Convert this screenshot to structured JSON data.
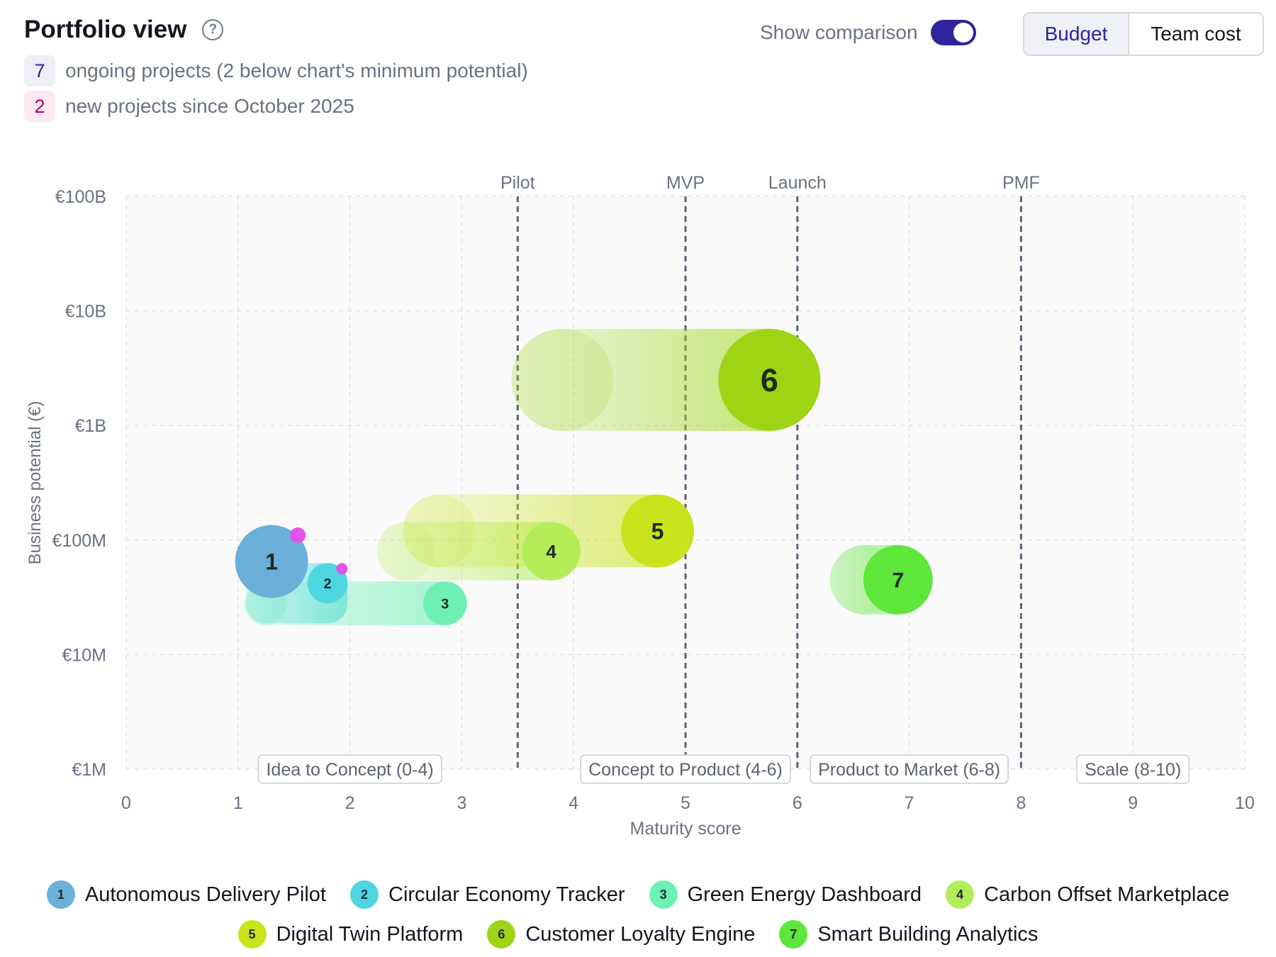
{
  "header": {
    "title": "Portfolio view",
    "help_icon": "question-circle-icon",
    "comparison_label": "Show comparison",
    "comparison_on": true,
    "toggle_color": "#2e249e",
    "segments": [
      "Budget",
      "Team cost"
    ],
    "active_segment": "Budget"
  },
  "stats": [
    {
      "count": "7",
      "text": "ongoing projects (2 below chart's minimum potential)",
      "badge_bg": "#eef0f6",
      "badge_fg": "#2e249e"
    },
    {
      "count": "2",
      "text": "new projects since October 2025",
      "badge_bg": "#fce8f3",
      "badge_fg": "#b3005c"
    }
  ],
  "chart_data": {
    "type": "scatter",
    "xlabel": "Maturity score",
    "ylabel": "Business potential (€)",
    "xlim": [
      0,
      10
    ],
    "xticks": [
      "0",
      "1",
      "2",
      "3",
      "4",
      "5",
      "6",
      "7",
      "8",
      "9",
      "10"
    ],
    "yscale": "log",
    "ylim": [
      1000000,
      100000000000
    ],
    "ytick_values": [
      1000000,
      10000000,
      100000000,
      1000000000,
      10000000000,
      100000000000
    ],
    "yticks": [
      "€1M",
      "€10M",
      "€100M",
      "€1B",
      "€10B",
      "€100B"
    ],
    "grid": true,
    "milestones": [
      {
        "label": "Pilot",
        "x": 3.5
      },
      {
        "label": "MVP",
        "x": 5
      },
      {
        "label": "Launch",
        "x": 6
      },
      {
        "label": "PMF",
        "x": 8
      }
    ],
    "phases": [
      {
        "label": "Idea to Concept (0-4)",
        "center": 2
      },
      {
        "label": "Concept to Product (4-6)",
        "center": 5
      },
      {
        "label": "Product to Market (6-8)",
        "center": 7
      },
      {
        "label": "Scale (8-10)",
        "center": 9
      }
    ],
    "series": [
      {
        "id": "1",
        "name": "Autonomous Delivery Pilot",
        "color": "#6ab0d8",
        "x": 1.3,
        "y": 65000000,
        "budget": 1.0,
        "new": true
      },
      {
        "id": "2",
        "name": "Circular Economy Tracker",
        "color": "#4dd6e0",
        "x": 1.8,
        "y": 42000000,
        "budget": 0.55,
        "new": true,
        "prev_x": 1.25,
        "prev_y": 28000000
      },
      {
        "id": "3",
        "name": "Green Energy Dashboard",
        "color": "#6ef0b4",
        "x": 2.85,
        "y": 28000000,
        "budget": 0.6,
        "new": false,
        "prev_x": 1.25
      },
      {
        "id": "4",
        "name": "Carbon Offset Marketplace",
        "color": "#b4ec5a",
        "x": 3.8,
        "y": 80000000,
        "budget": 0.8,
        "new": false,
        "prev_x": 2.5
      },
      {
        "id": "5",
        "name": "Digital Twin Platform",
        "color": "#c9e31c",
        "x": 4.75,
        "y": 120000000,
        "budget": 1.0,
        "new": false,
        "prev_x": 2.8
      },
      {
        "id": "6",
        "name": "Customer Loyalty Engine",
        "color": "#9dd514",
        "x": 5.75,
        "y": 2500000000,
        "budget": 1.4,
        "new": false,
        "prev_x": 3.9
      },
      {
        "id": "7",
        "name": "Smart Building Analytics",
        "color": "#5ee63a",
        "x": 6.9,
        "y": 45000000,
        "budget": 0.95,
        "new": false,
        "prev_x": 6.6
      }
    ],
    "new_marker_color": "#e254e8"
  }
}
